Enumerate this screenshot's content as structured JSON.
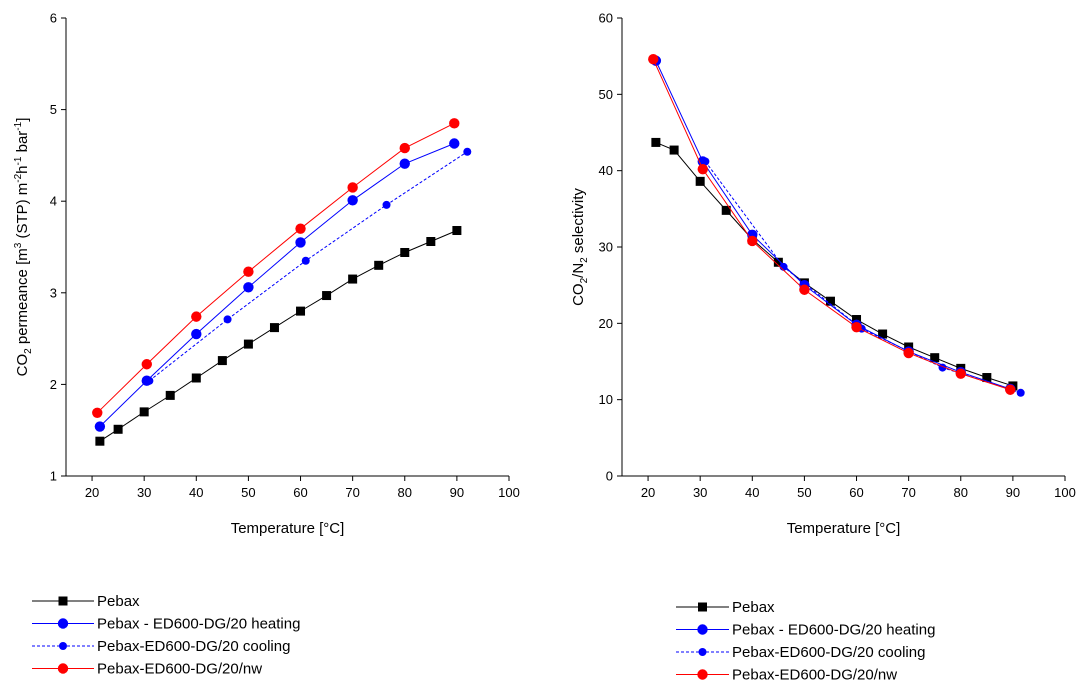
{
  "chart_data": [
    {
      "type": "line",
      "xlabel": "Temperature [°C]",
      "ylabel_parts": [
        "CO",
        "2",
        " permeance [m",
        "3",
        " (STP) m",
        "-2",
        "h",
        "-1",
        " bar",
        "-1",
        "]"
      ],
      "xlim": [
        15,
        100
      ],
      "ylim": [
        1,
        6
      ],
      "xticks": [
        20,
        30,
        40,
        50,
        60,
        70,
        80,
        90,
        100
      ],
      "yticks": [
        1,
        2,
        3,
        4,
        5,
        6
      ],
      "grid": false,
      "legend_position": "below",
      "series": [
        {
          "name": "Pebax",
          "color": "#000000",
          "marker": "square",
          "dash": false,
          "x": [
            21.5,
            25,
            30,
            35,
            40,
            45,
            50,
            55,
            60,
            65,
            70,
            75,
            80,
            85,
            90
          ],
          "y": [
            1.38,
            1.51,
            1.7,
            1.88,
            2.07,
            2.26,
            2.44,
            2.62,
            2.8,
            2.97,
            3.15,
            3.3,
            3.44,
            3.56,
            3.68
          ]
        },
        {
          "name": "Pebax - ED600-DG/20 heating",
          "color": "#0000ff",
          "marker": "circle",
          "dash": false,
          "x": [
            21.5,
            30.5,
            40,
            50,
            60,
            70,
            80,
            89.5
          ],
          "y": [
            1.54,
            2.04,
            2.55,
            3.06,
            3.55,
            4.01,
            4.41,
            4.63
          ]
        },
        {
          "name": "Pebax-ED600-DG/20 cooling",
          "color": "#0000ff",
          "marker": "circle-small",
          "dash": true,
          "x": [
            31,
            46,
            61,
            76.5,
            92
          ],
          "y": [
            2.04,
            2.71,
            3.35,
            3.96,
            4.54
          ]
        },
        {
          "name": "Pebax-ED600-DG/20/nw",
          "color": "#ff0000",
          "marker": "circle",
          "dash": false,
          "x": [
            21,
            30.5,
            40,
            50,
            60,
            70,
            80,
            89.5
          ],
          "y": [
            1.69,
            2.22,
            2.74,
            3.23,
            3.7,
            4.15,
            4.58,
            4.85
          ]
        }
      ]
    },
    {
      "type": "line",
      "xlabel": "Temperature [°C]",
      "ylabel_parts": [
        "CO",
        "2",
        "/N",
        "2",
        " selectivity"
      ],
      "xlim": [
        15,
        100
      ],
      "ylim": [
        0,
        60
      ],
      "xticks": [
        20,
        30,
        40,
        50,
        60,
        70,
        80,
        90,
        100
      ],
      "yticks": [
        0,
        10,
        20,
        30,
        40,
        50,
        60
      ],
      "grid": false,
      "legend_position": "below",
      "series": [
        {
          "name": "Pebax",
          "color": "#000000",
          "marker": "square",
          "dash": false,
          "x": [
            21.5,
            25,
            30,
            35,
            40,
            45,
            50,
            55,
            60,
            65,
            70,
            75,
            80,
            85,
            90
          ],
          "y": [
            43.7,
            42.7,
            38.6,
            34.8,
            31.0,
            28.0,
            25.3,
            22.9,
            20.5,
            18.6,
            16.9,
            15.5,
            14.1,
            12.9,
            11.8
          ]
        },
        {
          "name": "Pebax - ED600-DG/20 heating",
          "color": "#0000ff",
          "marker": "circle",
          "dash": false,
          "x": [
            21.5,
            30.5,
            40,
            50,
            60,
            70,
            80,
            89.5
          ],
          "y": [
            54.4,
            41.2,
            31.6,
            25.0,
            19.8,
            16.3,
            13.6,
            11.4
          ]
        },
        {
          "name": "Pebax-ED600-DG/20 cooling",
          "color": "#0000ff",
          "marker": "circle-small",
          "dash": true,
          "x": [
            31,
            46,
            61,
            76.5,
            91.5
          ],
          "y": [
            41.2,
            27.4,
            19.3,
            14.2,
            10.9
          ]
        },
        {
          "name": "Pebax-ED600-DG/20/nw",
          "color": "#ff0000",
          "marker": "circle",
          "dash": false,
          "x": [
            21,
            30.5,
            40,
            50,
            60,
            70,
            80,
            89.5
          ],
          "y": [
            54.6,
            40.2,
            30.8,
            24.4,
            19.5,
            16.1,
            13.4,
            11.3
          ]
        }
      ]
    }
  ]
}
